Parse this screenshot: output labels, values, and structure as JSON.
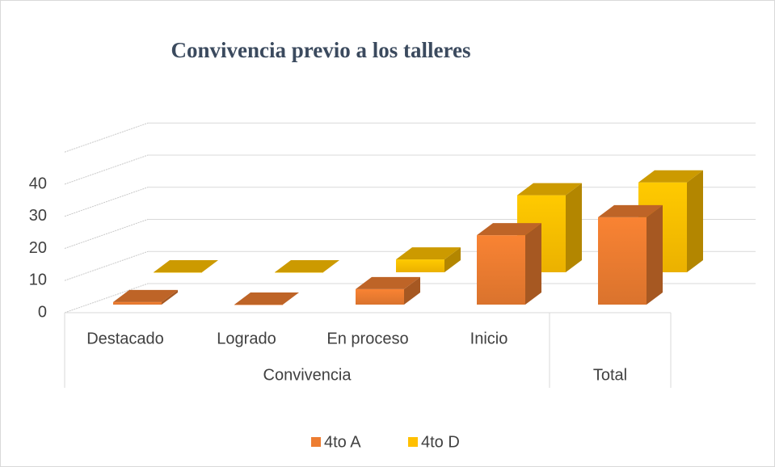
{
  "chart_data": {
    "type": "bar3d",
    "title": "Convivencia previo a los talleres",
    "categories": [
      "Destacado",
      "Logrado",
      "En proceso",
      "Inicio",
      null
    ],
    "category_groups": [
      "Convivencia",
      "Convivencia",
      "Convivencia",
      "Convivencia",
      "Total"
    ],
    "series": [
      {
        "name": "4to A",
        "color": "#ed7d31",
        "values": [
          1,
          0,
          6,
          27,
          34
        ]
      },
      {
        "name": "4to D",
        "color": "#ffc000",
        "values": [
          0,
          0,
          5,
          30,
          35
        ]
      }
    ],
    "ylim": [
      0,
      50
    ],
    "yticks": [
      0,
      10,
      20,
      30,
      40
    ],
    "grid": true,
    "legend": "bottom"
  }
}
